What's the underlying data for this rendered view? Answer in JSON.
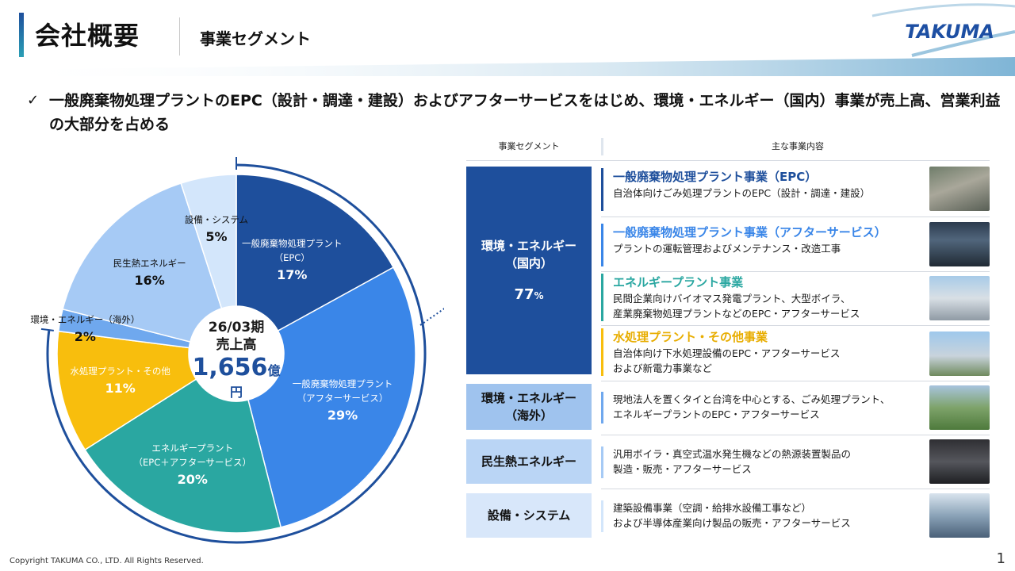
{
  "header": {
    "title": "会社概要",
    "subtitle": "事業セグメント",
    "logo": "TAKUMA"
  },
  "lead": {
    "check": "✓",
    "text": "一般廃棄物処理プラントのEPC（設計・調達・建設）およびアフターサービスをはじめ、環境・エネルギー（国内）事業が売上高、営業利益の大部分を占める"
  },
  "chart_data": {
    "type": "pie",
    "center": {
      "line1": "26/03期",
      "line2": "売上高",
      "amount": "1,656",
      "unit": "億円"
    },
    "slices": [
      {
        "label": "一般廃棄物処理プラント",
        "label2": "（EPC）",
        "value": 17,
        "value_label": "17%",
        "color": "#1e4f9c"
      },
      {
        "label": "一般廃棄物処理プラント",
        "label2": "（アフターサービス）",
        "value": 29,
        "value_label": "29%",
        "color": "#3a86e8"
      },
      {
        "label": "エネルギープラント",
        "label2": "（EPC＋アフターサービス）",
        "value": 20,
        "value_label": "20%",
        "color": "#2aa7a1"
      },
      {
        "label": "水処理プラント・その他",
        "label2": "",
        "value": 11,
        "value_label": "11%",
        "color": "#f8be0d"
      },
      {
        "label": "環境・エネルギー（海外）",
        "label2": "",
        "value": 2,
        "value_label": "2%",
        "color": "#6fa8ee"
      },
      {
        "label": "民生熱エネルギー",
        "label2": "",
        "value": 16,
        "value_label": "16%",
        "color": "#a6caf5"
      },
      {
        "label": "設備・システム",
        "label2": "",
        "value": 5,
        "value_label": "5%",
        "color": "#d3e6fb"
      }
    ]
  },
  "table": {
    "col1": "事業セグメント",
    "col2": "主な事業内容",
    "segments": [
      {
        "name": "環境・エネルギー",
        "name2": "（国内）",
        "pct": "77",
        "pct_unit": "%",
        "color": "#1e4f9c",
        "text_color": "#ffffff"
      },
      {
        "name": "環境・エネルギー",
        "name2": "（海外）",
        "color": "#9fc3ee",
        "text_color": "#111111"
      },
      {
        "name": "民生熱エネルギー",
        "name2": "",
        "color": "#bad5f5",
        "text_color": "#111111"
      },
      {
        "name": "設備・システム",
        "name2": "",
        "color": "#d8e7fa",
        "text_color": "#111111"
      }
    ],
    "rows": [
      {
        "title": "一般廃棄物処理プラント事業（EPC）",
        "title_color": "#1e4f9c",
        "bar_color": "#1e4f9c",
        "desc": "自治体向けごみ処理プラントのEPC（設計・調達・建設）",
        "desc2": ""
      },
      {
        "title": "一般廃棄物処理プラント事業（アフターサービス）",
        "title_color": "#3a86e8",
        "bar_color": "#3a86e8",
        "desc": "プラントの運転管理およびメンテナンス・改造工事",
        "desc2": ""
      },
      {
        "title": "エネルギープラント事業",
        "title_color": "#2aa7a1",
        "bar_color": "#2aa7a1",
        "desc": "民間企業向けバイオマス発電プラント、大型ボイラ、",
        "desc2": "産業廃棄物処理プラントなどのEPC・アフターサービス"
      },
      {
        "title": "水処理プラント・その他事業",
        "title_color": "#e8ad00",
        "bar_color": "#f8be0d",
        "desc": "自治体向け下水処理設備のEPC・アフターサービス",
        "desc2": "および新電力事業など"
      },
      {
        "title": "",
        "title_color": "#111111",
        "bar_color": "#6fa8ee",
        "desc": "現地法人を置くタイと台湾を中心とする、ごみ処理プラント、",
        "desc2": "エネルギープラントのEPC・アフターサービス"
      },
      {
        "title": "",
        "title_color": "#111111",
        "bar_color": "#a6caf5",
        "desc": "汎用ボイラ・真空式温水発生機などの熱源装置製品の",
        "desc2": "製造・販売・アフターサービス"
      },
      {
        "title": "",
        "title_color": "#111111",
        "bar_color": "#d3e6fb",
        "desc": "建築設備事業（空調・給排水設備工事など）",
        "desc2": "および半導体産業向け製品の販売・アフターサービス"
      }
    ]
  },
  "footer": {
    "copyright": "Copyright TAKUMA CO., LTD. All Rights Reserved.",
    "page": "1"
  }
}
